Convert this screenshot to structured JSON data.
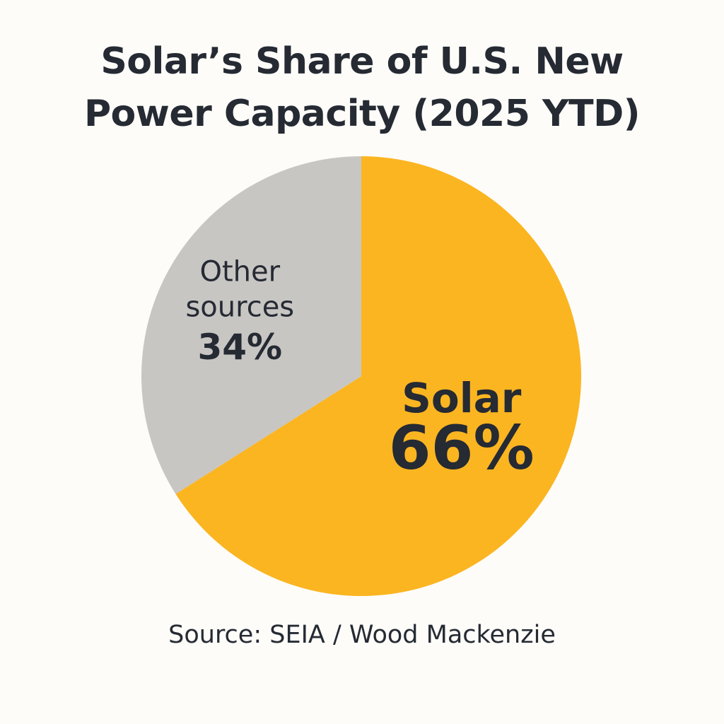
{
  "chart_data": {
    "type": "pie",
    "title": {
      "line1": "Solar’s Share of U.S. New",
      "line2": "Power Capacity (2025 YTD)"
    },
    "slices": [
      {
        "label_lines": [
          "Solar"
        ],
        "value": 66,
        "value_label": "66%",
        "color": "#fbb521"
      },
      {
        "label_lines": [
          "Other",
          "sources"
        ],
        "value": 34,
        "value_label": "34%",
        "color": "#c8c6c3"
      }
    ],
    "legend": "none",
    "source": "Source: SEIA / Wood Mackenzie"
  }
}
